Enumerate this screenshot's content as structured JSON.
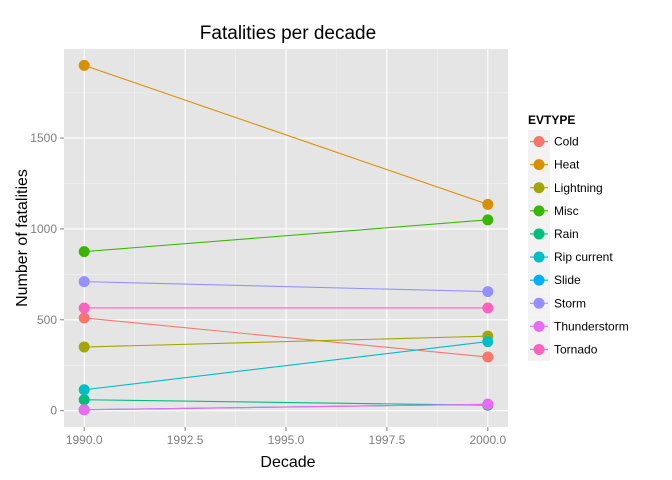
{
  "chart_data": {
    "type": "line",
    "title": "Fatalities per decade",
    "xlabel": "Decade",
    "ylabel": "Number of fatalities",
    "x": [
      1990,
      2000
    ],
    "xlim": [
      1989.5,
      2000.5
    ],
    "ylim": [
      -90,
      1990
    ],
    "xticks": [
      1990.0,
      1992.5,
      1995.0,
      1997.5,
      2000.0
    ],
    "xtick_labels": [
      "1990.0",
      "1992.5",
      "1995.0",
      "1997.5",
      "2000.0"
    ],
    "yticks": [
      0,
      500,
      1000,
      1500
    ],
    "ytick_labels": [
      "0",
      "500",
      "1000",
      "1500"
    ],
    "grid": true,
    "legend_title": "EVTYPE",
    "legend_position": "right",
    "series": [
      {
        "name": "Cold",
        "color": "#F8766D",
        "values": [
          510,
          295
        ]
      },
      {
        "name": "Heat",
        "color": "#D89000",
        "values": [
          1900,
          1135
        ]
      },
      {
        "name": "Lightning",
        "color": "#A3A500",
        "values": [
          350,
          410
        ]
      },
      {
        "name": "Misc",
        "color": "#39B600",
        "values": [
          875,
          1050
        ]
      },
      {
        "name": "Rain",
        "color": "#00BF7D",
        "values": [
          60,
          30
        ]
      },
      {
        "name": "Rip current",
        "color": "#00BFC4",
        "values": [
          115,
          380
        ]
      },
      {
        "name": "Slide",
        "color": "#00B0F6",
        "values": [
          5,
          35
        ]
      },
      {
        "name": "Storm",
        "color": "#9590FF",
        "values": [
          710,
          655
        ]
      },
      {
        "name": "Thunderstorm",
        "color": "#E76BF3",
        "values": [
          5,
          35
        ]
      },
      {
        "name": "Tornado",
        "color": "#FF62BC",
        "values": [
          565,
          565
        ]
      }
    ]
  }
}
